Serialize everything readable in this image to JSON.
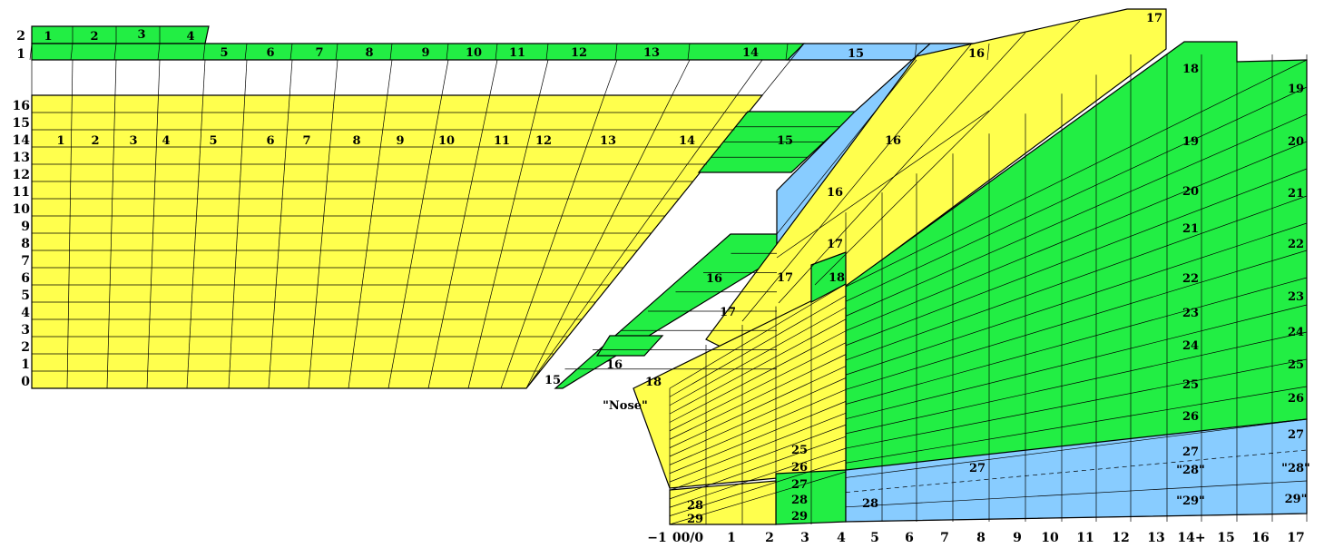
{
  "colors": {
    "yellow": "#ffff4d",
    "green": "#22ee44",
    "blue": "#88ccff",
    "line": "#000000"
  },
  "top_row_labels": [
    "1",
    "2",
    "3",
    "4",
    "5",
    "6",
    "7",
    "8",
    "9",
    "10",
    "11",
    "12",
    "13",
    "14",
    "15",
    "16"
  ],
  "left_axis_top": [
    "2",
    "1"
  ],
  "left_axis": [
    "16",
    "15",
    "14",
    "13",
    "12",
    "11",
    "10",
    "9",
    "8",
    "7",
    "6",
    "5",
    "4",
    "3",
    "2",
    "1",
    "0"
  ],
  "row14_labels": [
    "1",
    "2",
    "3",
    "4",
    "5",
    "6",
    "7",
    "8",
    "9",
    "10",
    "11",
    "12",
    "13",
    "14",
    "15",
    "16"
  ],
  "region_labels": {
    "l16a": "16",
    "l16b": "16",
    "l15b": "15",
    "l16c": "16",
    "l17a": "17",
    "l17b": "17",
    "l17c": "17",
    "l18a": "18",
    "l18b": "18",
    "nose": "\"Nose\"",
    "t17": "17",
    "l25": "25",
    "l26": "26",
    "l27a": "27",
    "l28a": "28",
    "l29a": "29",
    "l28b": "28",
    "l29b": "29",
    "l28c": "28",
    "l27b": "27"
  },
  "right_col_a": [
    "18",
    "19",
    "20",
    "21",
    "22",
    "23",
    "24",
    "25",
    "26",
    "27",
    "\"28\"",
    "\"29\""
  ],
  "right_col_b": [
    "19",
    "20",
    "21",
    "22",
    "23",
    "24",
    "25",
    "26",
    "27",
    "\"28\"",
    "29\""
  ],
  "bottom_axis": [
    "−1",
    "00/0",
    "1",
    "2",
    "3",
    "4",
    "5",
    "6",
    "7",
    "8",
    "9",
    "10",
    "11",
    "12",
    "13",
    "14+",
    "15",
    "16",
    "17"
  ]
}
